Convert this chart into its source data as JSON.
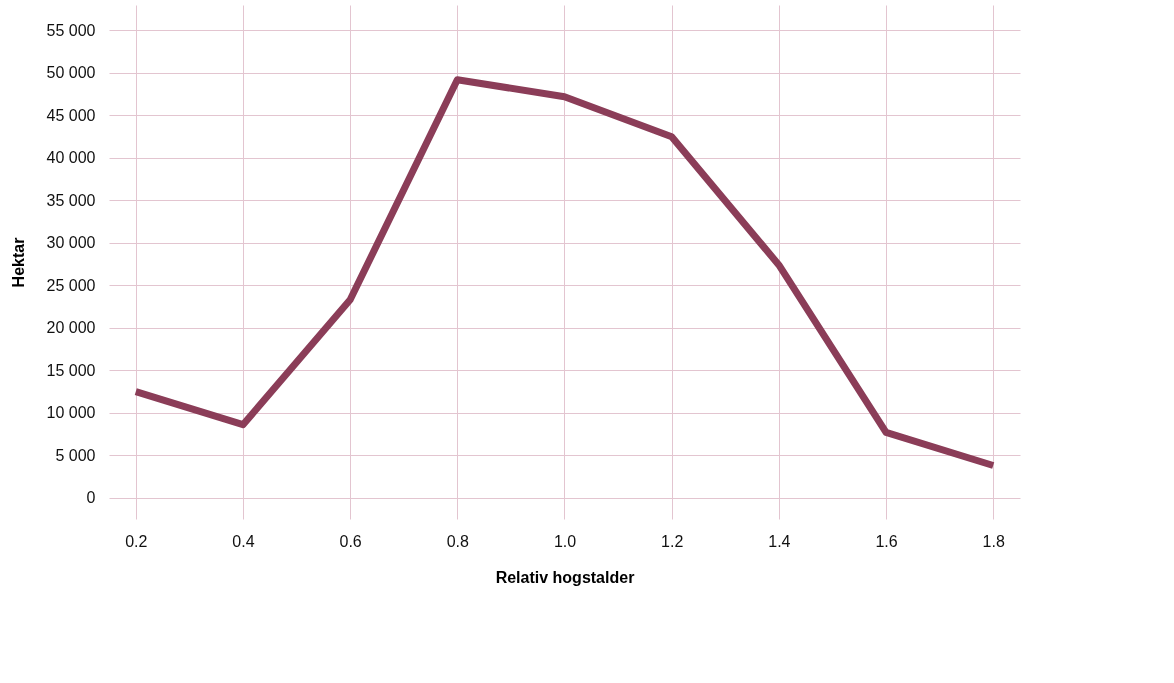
{
  "chart_data": {
    "type": "line",
    "xlabel": "Relativ hogstalder",
    "ylabel": "Hektar",
    "x": [
      0.2,
      0.4,
      0.6,
      0.8,
      1.0,
      1.2,
      1.4,
      1.6,
      1.8
    ],
    "series": [
      {
        "color": "#8b3d58",
        "values": [
          12500,
          8600,
          23300,
          49200,
          47200,
          42500,
          27400,
          7700,
          3800
        ]
      }
    ],
    "xlim": [
      0.15,
      1.85
    ],
    "ylim": [
      -2500,
      58000
    ],
    "xticks": [
      {
        "value": 0.2,
        "label": "0.2"
      },
      {
        "value": 0.4,
        "label": "0.4"
      },
      {
        "value": 0.6,
        "label": "0.6"
      },
      {
        "value": 0.8,
        "label": "0.8"
      },
      {
        "value": 1.0,
        "label": "1.0"
      },
      {
        "value": 1.2,
        "label": "1.2"
      },
      {
        "value": 1.4,
        "label": "1.4"
      },
      {
        "value": 1.6,
        "label": "1.6"
      },
      {
        "value": 1.8,
        "label": "1.8"
      }
    ],
    "yticks": [
      0,
      {
        "value": 5000,
        "label": "5 000"
      },
      {
        "value": 10000,
        "label": "10 000"
      },
      {
        "value": 15000,
        "label": "15 000"
      },
      {
        "value": 20000,
        "label": "20 000"
      },
      {
        "value": 25000,
        "label": "25 000"
      },
      {
        "value": 30000,
        "label": "30 000"
      },
      {
        "value": 35000,
        "label": "35 000"
      },
      {
        "value": 40000,
        "label": "40 000"
      },
      {
        "value": 45000,
        "label": "45 000"
      },
      {
        "value": 50000,
        "label": "50 000"
      },
      {
        "value": 55000,
        "label": "55 000"
      }
    ],
    "grid": true,
    "marker": "none",
    "line_style": "solid"
  }
}
